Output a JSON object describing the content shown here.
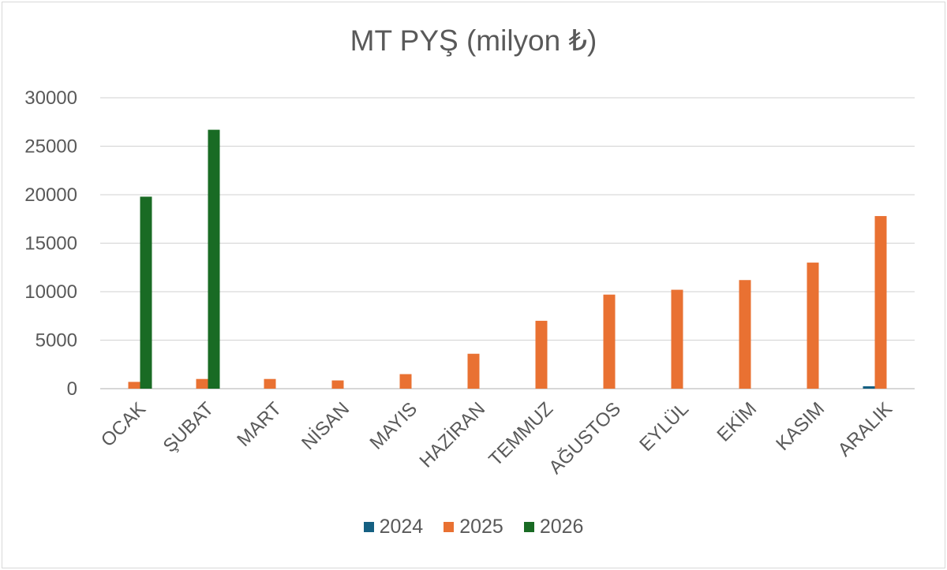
{
  "chart_data": {
    "type": "bar",
    "title": "MT PYŞ (milyon ₺)",
    "xlabel": "",
    "ylabel": "",
    "ylim": [
      0,
      30000
    ],
    "yticks": [
      0,
      5000,
      10000,
      15000,
      20000,
      25000,
      30000
    ],
    "grid": true,
    "legend_position": "bottom",
    "categories": [
      "OCAK",
      "ŞUBAT",
      "MART",
      "NİSAN",
      "MAYIS",
      "HAZİRAN",
      "TEMMUZ",
      "AĞUSTOS",
      "EYLÜL",
      "EKİM",
      "KASIM",
      "ARALIK"
    ],
    "series": [
      {
        "name": "2024",
        "color": "#156082",
        "values": [
          null,
          null,
          null,
          null,
          null,
          null,
          null,
          null,
          null,
          null,
          null,
          250
        ]
      },
      {
        "name": "2025",
        "color": "#E97132",
        "values": [
          700,
          1000,
          1000,
          850,
          1500,
          3600,
          7000,
          9700,
          10200,
          11200,
          13000,
          17800
        ]
      },
      {
        "name": "2026",
        "color": "#196B24",
        "values": [
          19800,
          26700,
          null,
          null,
          null,
          null,
          null,
          null,
          null,
          null,
          null,
          null
        ]
      }
    ]
  }
}
